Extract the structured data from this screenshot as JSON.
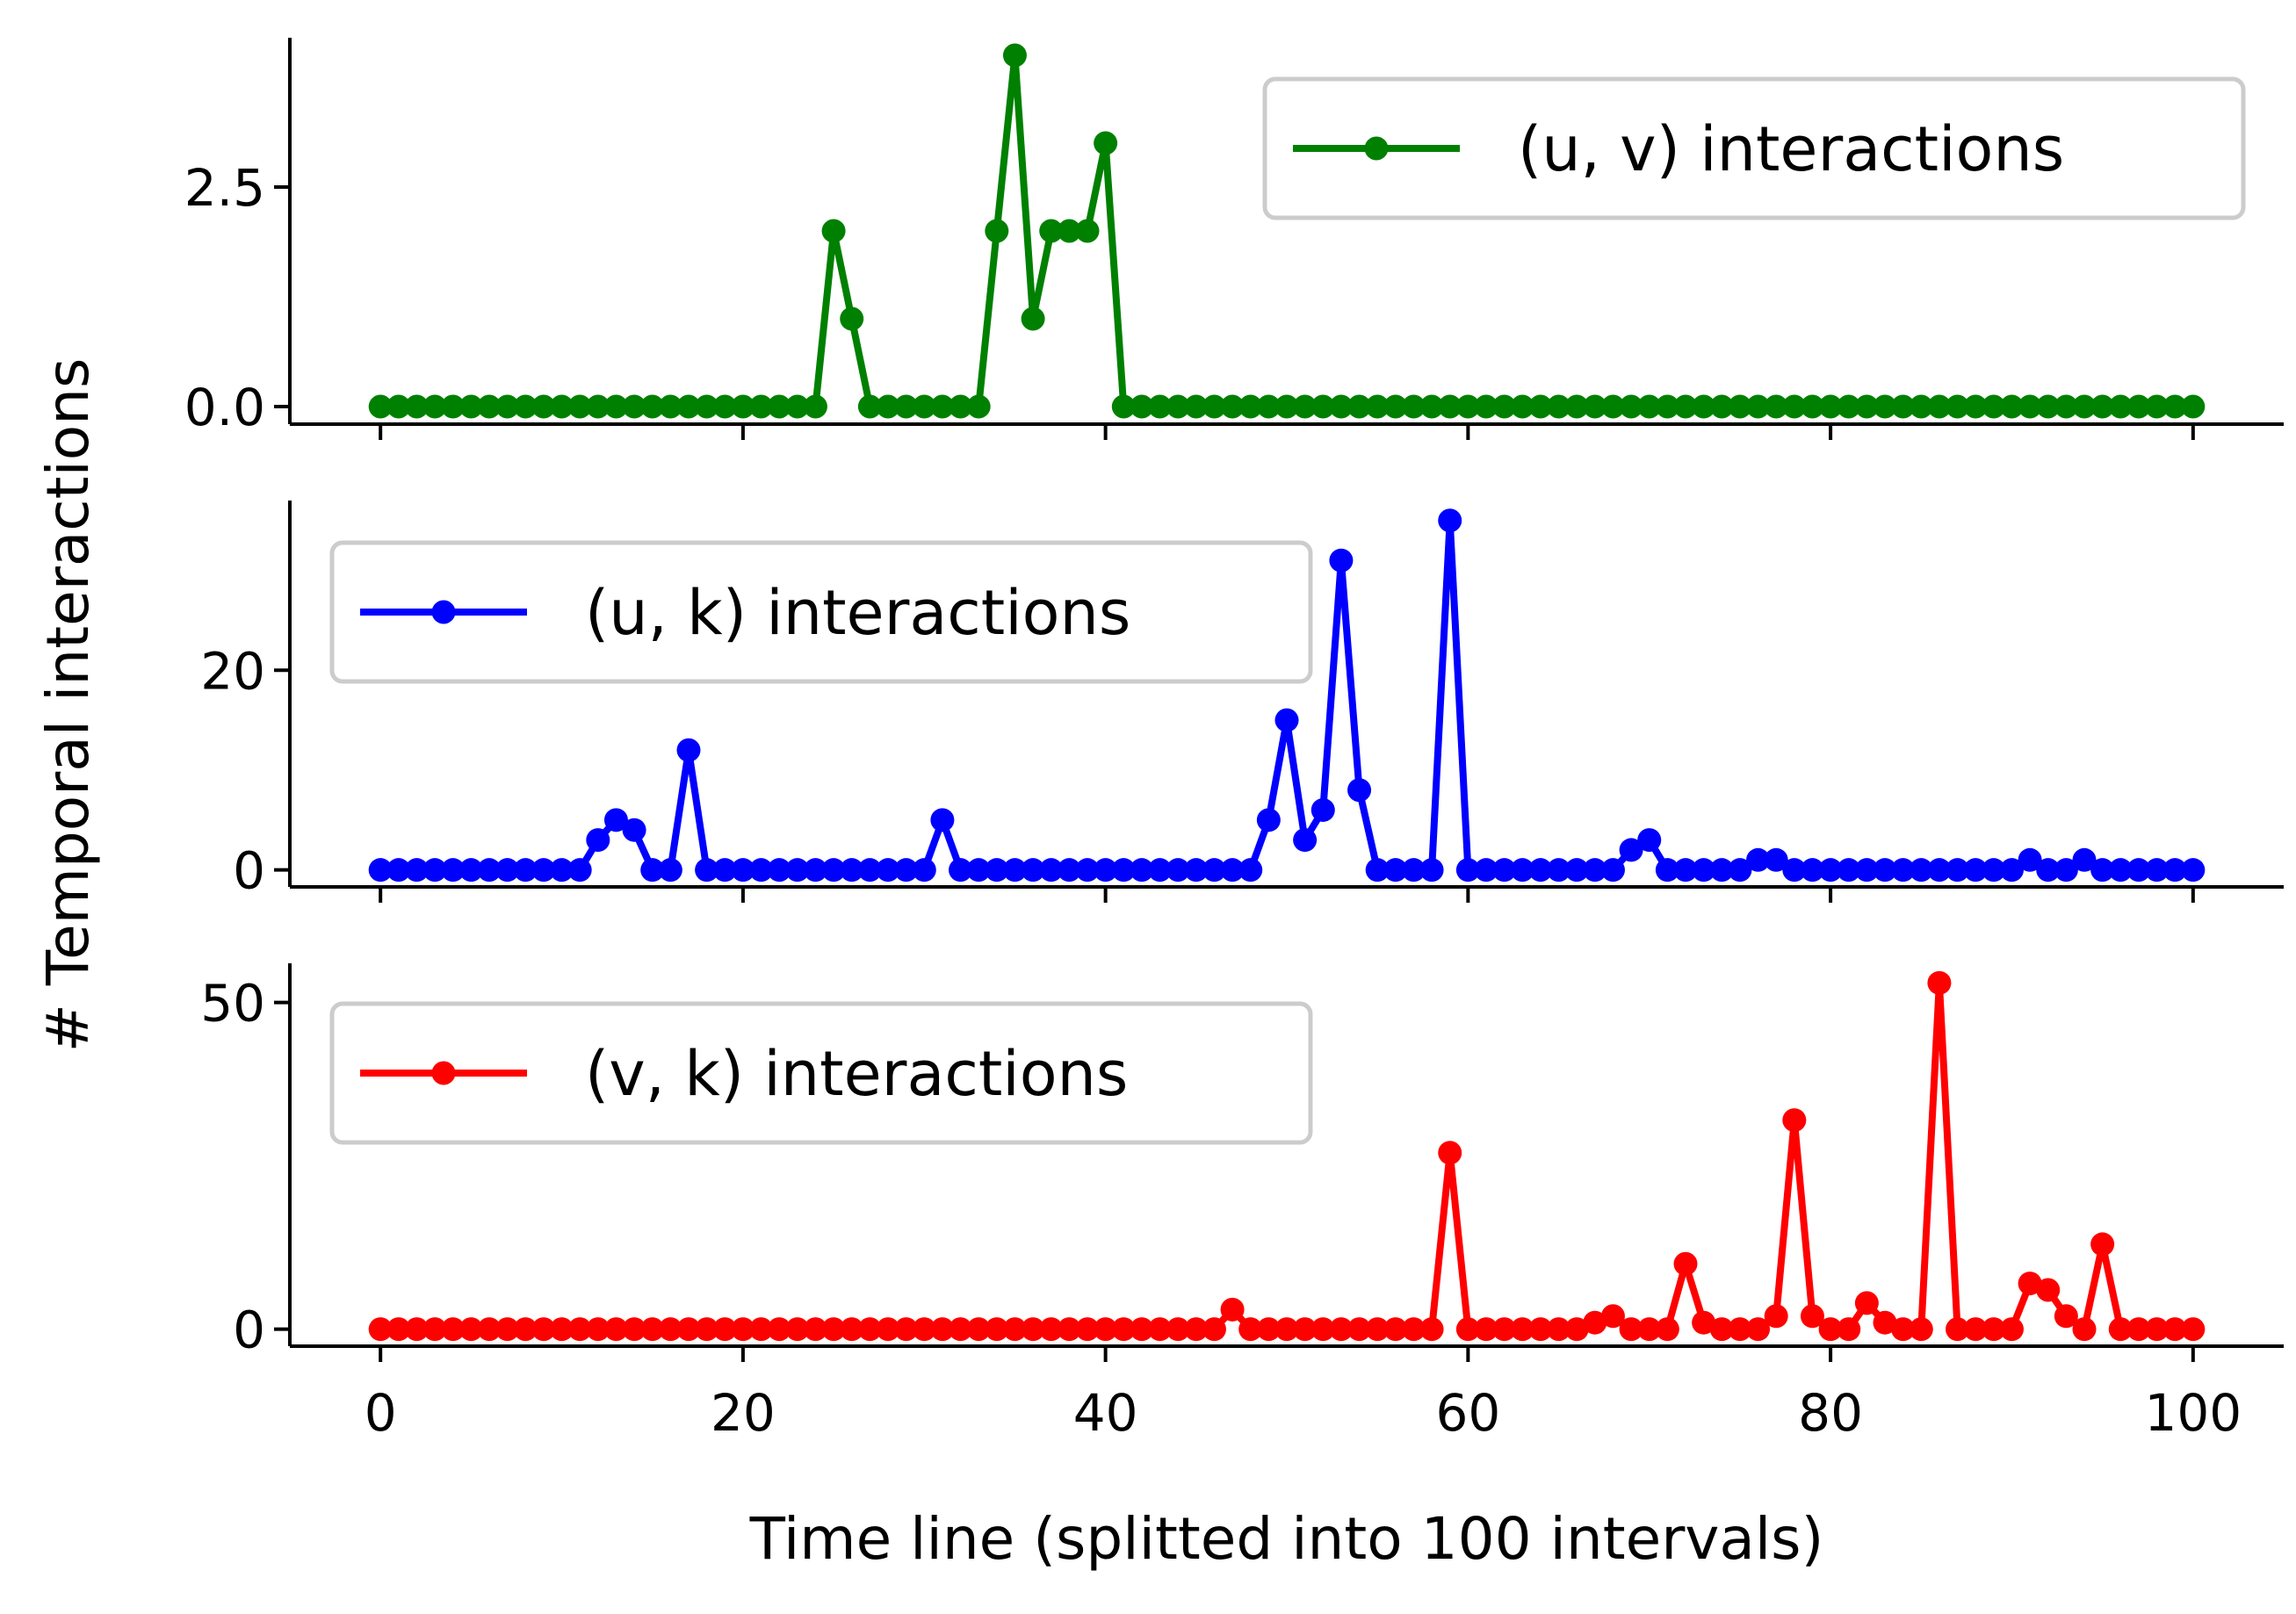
{
  "chart_data": {
    "type": "line",
    "xlabel": "Time line (splitted into 100 intervals)",
    "ylabel": "# Temporal interactions",
    "x_ticks": [
      0,
      20,
      40,
      60,
      80,
      100
    ],
    "xlim": [
      -5,
      105
    ],
    "shared_x": true,
    "grid": false,
    "panels": [
      {
        "name": "(u, v) interactions",
        "color": "#008000",
        "legend_position": "upper right",
        "ylim": [
          -0.2,
          4.2
        ],
        "y_ticks": [
          0.0,
          2.5
        ],
        "y_tick_labels": [
          "0.0",
          "2.5"
        ],
        "values": [
          0,
          0,
          0,
          0,
          0,
          0,
          0,
          0,
          0,
          0,
          0,
          0,
          0,
          0,
          0,
          0,
          0,
          0,
          0,
          0,
          0,
          0,
          0,
          0,
          0,
          2,
          1,
          0,
          0,
          0,
          0,
          0,
          0,
          0,
          2,
          4,
          1,
          2,
          2,
          2,
          3,
          0,
          0,
          0,
          0,
          0,
          0,
          0,
          0,
          0,
          0,
          0,
          0,
          0,
          0,
          0,
          0,
          0,
          0,
          0,
          0,
          0,
          0,
          0,
          0,
          0,
          0,
          0,
          0,
          0,
          0,
          0,
          0,
          0,
          0,
          0,
          0,
          0,
          0,
          0,
          0,
          0,
          0,
          0,
          0,
          0,
          0,
          0,
          0,
          0,
          0,
          0,
          0,
          0,
          0,
          0,
          0,
          0,
          0,
          0,
          0
        ]
      },
      {
        "name": "(u, k) interactions",
        "color": "#0000ff",
        "legend_position": "upper left",
        "ylim": [
          -1.7,
          37
        ],
        "y_ticks": [
          0,
          20
        ],
        "y_tick_labels": [
          "0",
          "20"
        ],
        "values": [
          0,
          0,
          0,
          0,
          0,
          0,
          0,
          0,
          0,
          0,
          0,
          0,
          3,
          5,
          4,
          0,
          0,
          12,
          0,
          0,
          0,
          0,
          0,
          0,
          0,
          0,
          0,
          0,
          0,
          0,
          0,
          5,
          0,
          0,
          0,
          0,
          0,
          0,
          0,
          0,
          0,
          0,
          0,
          0,
          0,
          0,
          0,
          0,
          0,
          5,
          15,
          3,
          6,
          31,
          8,
          0,
          0,
          0,
          0,
          35,
          0,
          0,
          0,
          0,
          0,
          0,
          0,
          0,
          0,
          2,
          3,
          0,
          0,
          0,
          0,
          0,
          1,
          1,
          0,
          0,
          0,
          0,
          0,
          0,
          0,
          0,
          0,
          0,
          0,
          0,
          0,
          1,
          0,
          0,
          1,
          0,
          0,
          0,
          0,
          0,
          0
        ]
      },
      {
        "name": "(v, k) interactions",
        "color": "#ff0000",
        "legend_position": "upper left",
        "ylim": [
          -2.6,
          56
        ],
        "y_ticks": [
          0,
          50
        ],
        "y_tick_labels": [
          "0",
          "50"
        ],
        "values": [
          0,
          0,
          0,
          0,
          0,
          0,
          0,
          0,
          0,
          0,
          0,
          0,
          0,
          0,
          0,
          0,
          0,
          0,
          0,
          0,
          0,
          0,
          0,
          0,
          0,
          0,
          0,
          0,
          0,
          0,
          0,
          0,
          0,
          0,
          0,
          0,
          0,
          0,
          0,
          0,
          0,
          0,
          0,
          0,
          0,
          0,
          0,
          3,
          0,
          0,
          0,
          0,
          0,
          0,
          0,
          0,
          0,
          0,
          0,
          27,
          0,
          0,
          0,
          0,
          0,
          0,
          0,
          1,
          2,
          0,
          0,
          0,
          10,
          1,
          0,
          0,
          0,
          2,
          32,
          2,
          0,
          0,
          4,
          1,
          0,
          0,
          53,
          0,
          0,
          0,
          0,
          7,
          6,
          2,
          0,
          13,
          0,
          0,
          0,
          0,
          0
        ]
      }
    ]
  }
}
